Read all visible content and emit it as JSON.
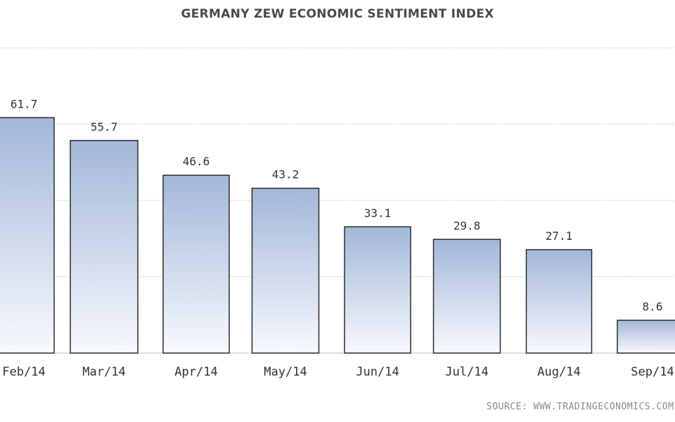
{
  "chart_data": {
    "type": "bar",
    "title": "GERMANY ZEW ECONOMIC SENTIMENT INDEX",
    "categories": [
      "Feb/14",
      "Mar/14",
      "Apr/14",
      "May/14",
      "Jun/14",
      "Jul/14",
      "Aug/14",
      "Sep/14"
    ],
    "values": [
      61.7,
      55.7,
      46.6,
      43.2,
      33.1,
      29.8,
      27.1,
      8.6
    ],
    "data_labels": [
      "61.7",
      "55.7",
      "46.6",
      "43.2",
      "33.1",
      "29.8",
      "27.1",
      "8.6"
    ],
    "xlabel": "",
    "ylabel": "",
    "ylim": [
      0,
      80
    ],
    "grid": true,
    "legend": "none",
    "colors": {
      "bar_top": "#a3b7d8",
      "bar_bottom": "#f7f9fd",
      "bar_border": "#2b2b2b",
      "grid": "#c8c8c8",
      "label": "#333333"
    }
  },
  "source": "SOURCE: WWW.TRADINGECONOMICS.COM"
}
